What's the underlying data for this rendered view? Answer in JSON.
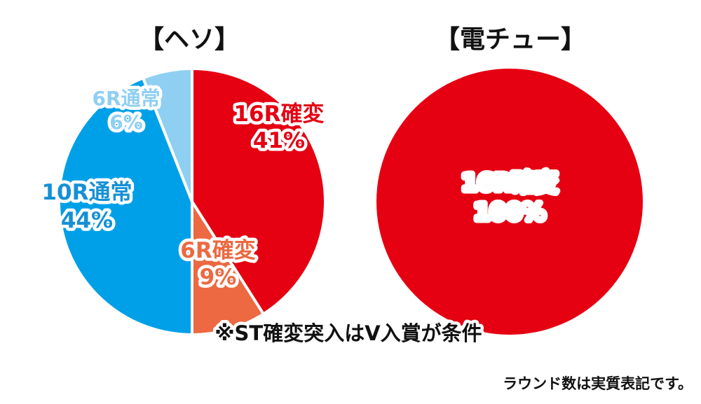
{
  "chart_data": [
    {
      "type": "pie",
      "title": "【ヘソ】",
      "slices": [
        {
          "label": "16R確変",
          "value": 41,
          "value_label": "41%",
          "color": "#e50012",
          "text_color": "#e50012"
        },
        {
          "label": "6R確変",
          "value": 9,
          "value_label": "9%",
          "color": "#ec6941",
          "text_color": "#ec6941"
        },
        {
          "label": "10R通常",
          "value": 44,
          "value_label": "44%",
          "color": "#00a0e9",
          "text_color": "#1590d6"
        },
        {
          "label": "6R通常",
          "value": 6,
          "value_label": "6%",
          "color": "#8fcff2",
          "text_color": "#8fcff2"
        }
      ]
    },
    {
      "type": "pie",
      "title": "【電チュー】",
      "slices": [
        {
          "label": "16R確変",
          "value": 100,
          "value_label": "100%",
          "color": "#e50012",
          "text_color": "#ffffff"
        }
      ]
    }
  ],
  "notes": {
    "st_note": "※ST確変突入はV入賞が条件",
    "round_note": "ラウンド数は実質表記です。"
  }
}
